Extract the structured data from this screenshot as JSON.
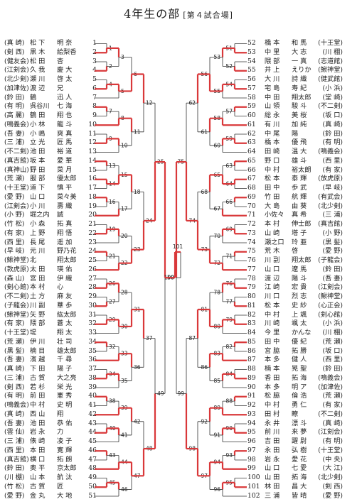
{
  "title": "4年生の部",
  "subtitle": "[第４試合場]",
  "left_entries": [
    {
      "num": "1",
      "club": "(真 崎)",
      "name": "松 下",
      "school": "明 奈"
    },
    {
      "num": "2",
      "club": "(剣 西)",
      "name": "黒 木",
      "school": "絵梨香"
    },
    {
      "num": "3",
      "club": "(健友会)",
      "name": "松 田",
      "school": "杏"
    },
    {
      "num": "4",
      "club": "(江剣会)",
      "name": "久 我",
      "school": "慶 大"
    },
    {
      "num": "5",
      "club": "(北少剣)",
      "name": "瀬 川",
      "school": "啓 太"
    },
    {
      "num": "6",
      "club": "(加津佐)",
      "name": "渡 辺",
      "school": "兄"
    },
    {
      "num": "7",
      "club": "(鈴 田)",
      "name": "鶴",
      "school": "迅 人"
    },
    {
      "num": "8",
      "club": "(有 明)",
      "name": "呉谷川",
      "school": "七 海"
    },
    {
      "num": "9",
      "club": "(高 麗)",
      "name": "鶴 田",
      "school": "翔 也",
      "strike": true
    },
    {
      "num": "10",
      "club": "(鳴義会)",
      "name": "小 林",
      "school": "龍 斗"
    },
    {
      "num": "11",
      "club": "(吾 妻)",
      "name": "小 嶋",
      "school": "爽 真"
    },
    {
      "num": "12",
      "club": "(三 浦)",
      "name": "立 光",
      "school": "匠 馬"
    },
    {
      "num": "13",
      "club": "(不二剣)",
      "name": "池 田",
      "school": "裕 道"
    },
    {
      "num": "14",
      "club": "(真吉館)",
      "name": "坂 本",
      "school": "愛 華"
    },
    {
      "num": "15",
      "club": "(真神山)",
      "name": "野 田",
      "school": "菜 月"
    },
    {
      "num": "16",
      "club": "(荒 瀬)",
      "name": "服 部",
      "school": "優太郎"
    },
    {
      "num": "17",
      "club": "(十王堂)",
      "name": "道 下",
      "school": "慎 平"
    },
    {
      "num": "18",
      "club": "(愛 野)",
      "name": "山 口",
      "school": "菜々美"
    },
    {
      "num": "19",
      "club": "(江剣会)",
      "name": "小 川",
      "school": "壽 織"
    },
    {
      "num": "20",
      "club": "(小 野)",
      "name": "堀之内",
      "school": "誠"
    },
    {
      "num": "21",
      "club": "(竹 松)",
      "name": "小 森",
      "school": "拓 真"
    },
    {
      "num": "22",
      "club": "(有 家)",
      "name": "上 野",
      "school": "翔 悟"
    },
    {
      "num": "23",
      "club": "(西 里)",
      "name": "長 尾",
      "school": "遥 加"
    },
    {
      "num": "24",
      "club": "(早 岐)",
      "name": "元 川",
      "school": "野乃花"
    },
    {
      "num": "25",
      "club": "(鰍神堂)",
      "name": "北",
      "school": "翔太郎"
    },
    {
      "num": "26",
      "club": "(敦虎原)",
      "name": "太 田",
      "school": "瑛 佑"
    },
    {
      "num": "27",
      "club": "(森 山)",
      "name": "宮 田",
      "school": "伊 織"
    },
    {
      "num": "28",
      "club": "(剣心館)",
      "name": "本 村",
      "school": "心"
    },
    {
      "num": "29",
      "club": "(不二剣)",
      "name": "土 方",
      "school": "麻 友"
    },
    {
      "num": "30",
      "club": "(子龍会)",
      "name": "川 副",
      "school": "華 歩"
    },
    {
      "num": "31",
      "club": "(鰍神堂)",
      "name": "矢 野",
      "school": "紘太郎"
    },
    {
      "num": "32",
      "club": "(有 家)",
      "name": "隈 部",
      "school": "蒼 太"
    },
    {
      "num": "33",
      "club": "(十王堂)",
      "name": "堤",
      "school": "翔 太"
    },
    {
      "num": "34",
      "club": "(荒 瀬)",
      "name": "伊 川",
      "school": "壮 司"
    },
    {
      "num": "35",
      "club": "(黒 髪)",
      "name": "楠 目",
      "school": "雄太郎"
    },
    {
      "num": "36",
      "club": "(吾 妻)",
      "name": "濱 越",
      "school": "千 尋"
    },
    {
      "num": "37",
      "club": "(真 崎)",
      "name": "下 田",
      "school": "陽 子"
    },
    {
      "num": "38",
      "club": "(三 浦)",
      "name": "古 賀",
      "school": "大之亮"
    },
    {
      "num": "39",
      "club": "(剣 西)",
      "name": "若 杉",
      "school": "栄 光"
    },
    {
      "num": "40",
      "club": "(有 明)",
      "name": "前 田",
      "school": "憲 秀"
    },
    {
      "num": "41",
      "club": "(鳴義会)",
      "name": "中 村",
      "school": "史 明"
    },
    {
      "num": "42",
      "club": "(真 崎)",
      "name": "西 山",
      "school": "翔"
    },
    {
      "num": "43",
      "club": "(吾 妻)",
      "name": "池 田",
      "school": "恭 佑"
    },
    {
      "num": "44",
      "club": "(雲 仙)",
      "name": "岩 永",
      "school": "力"
    },
    {
      "num": "45",
      "club": "(三 浦)",
      "name": "俵 崎",
      "school": "凌 子"
    },
    {
      "num": "46",
      "club": "(西 里)",
      "name": "本 田",
      "school": "寛 輝"
    },
    {
      "num": "47",
      "club": "(真吉館)",
      "name": "横 口",
      "school": "拓 朗"
    },
    {
      "num": "48",
      "club": "(鈴 田)",
      "name": "奥 平",
      "school": "京太郎"
    },
    {
      "num": "49",
      "club": "(川 棚)",
      "name": "山 本",
      "school": "航 汰"
    },
    {
      "num": "50",
      "club": "(竹 松)",
      "name": "古 賀",
      "school": "匠"
    },
    {
      "num": "51",
      "club": "(愛 野)",
      "name": "金 丸",
      "school": "大 地"
    }
  ],
  "right_entries": [
    {
      "num": "52",
      "name": "橋 本",
      "school": "和 馬",
      "club": "(十王堂)"
    },
    {
      "num": "53",
      "name": "中 里",
      "school": "大 志",
      "club": "(川 棚)"
    },
    {
      "num": "54",
      "name": "隈 部",
      "school": "一 真",
      "club": "(志道館)"
    },
    {
      "num": "55",
      "name": "井 上",
      "school": "えりか",
      "club": "(鰍神堂)"
    },
    {
      "num": "56",
      "name": "大 川",
      "school": "詩 織",
      "club": "(健武館)"
    },
    {
      "num": "57",
      "name": "宅 島",
      "school": "寿 紀",
      "club": "(小 浜)"
    },
    {
      "num": "58",
      "name": "中 田",
      "school": "翔太郎",
      "club": "(堂 崎)"
    },
    {
      "num": "59",
      "name": "山 領",
      "school": "駿 斗",
      "club": "(不二剣)"
    },
    {
      "num": "60",
      "name": "総 永",
      "school": "美 桜",
      "club": "(坂 口)"
    },
    {
      "num": "61",
      "name": "有 川",
      "school": "加 純",
      "club": "(真 崎)"
    },
    {
      "num": "62",
      "name": "中 尾",
      "school": "陽",
      "club": "(鈴 田)"
    },
    {
      "num": "63",
      "name": "橋 本",
      "school": "優 飛",
      "club": "(有 明)"
    },
    {
      "num": "64",
      "name": "田 崎",
      "school": "温 大",
      "club": "(鳴義会)"
    },
    {
      "num": "65",
      "name": "野 口",
      "school": "雄 斗",
      "club": "(西 里)"
    },
    {
      "num": "66",
      "name": "中 村",
      "school": "裕太朗",
      "club": "(有 家)"
    },
    {
      "num": "67",
      "name": "松 本",
      "school": "泰 輝",
      "club": "(放虎原)"
    },
    {
      "num": "68",
      "name": "田 中",
      "school": "歩 武",
      "club": "(早 岐)"
    },
    {
      "num": "69",
      "name": "竹 田",
      "school": "航 輝",
      "club": "(有武会)"
    },
    {
      "num": "70",
      "name": "大 島",
      "school": "由 葵",
      "club": "(北少剣)"
    },
    {
      "num": "71",
      "name": "小佐々",
      "school": "真 希",
      "club": "(三 浦)"
    },
    {
      "num": "72",
      "name": "本 村",
      "school": "伸士郎",
      "club": "(真吉館)"
    },
    {
      "num": "73",
      "name": "山 崎",
      "school": "塔 子",
      "club": "(小 野)"
    },
    {
      "num": "74",
      "name": "瀬之口",
      "school": "玲 亜",
      "club": "(黒 髪)"
    },
    {
      "num": "75",
      "name": "荒 木",
      "school": "啓",
      "club": "(愛 野)"
    },
    {
      "num": "76",
      "name": "川 副",
      "school": "翔太郎",
      "club": "(子龍会)"
    },
    {
      "num": "77",
      "name": "山 口",
      "school": "遼 馬",
      "club": "(鈴 田)"
    },
    {
      "num": "78",
      "name": "渡 辺",
      "school": "陽 斗",
      "club": "(吾 妻)"
    },
    {
      "num": "79",
      "name": "江 崎",
      "school": "宏 貴",
      "club": "(江剣会)"
    },
    {
      "num": "80",
      "name": "川 口",
      "school": "烈 志",
      "club": "(鰍神堂)"
    },
    {
      "num": "81",
      "name": "松 本",
      "school": "史 紗",
      "club": "(心正会)"
    },
    {
      "num": "82",
      "name": "中 村",
      "school": "上 颯",
      "club": "(剣心館)"
    },
    {
      "num": "83",
      "name": "川 崎",
      "school": "颯 太",
      "club": "(小 浜)"
    },
    {
      "num": "84",
      "name": "今 里",
      "school": "かんな",
      "club": "(川 棚)"
    },
    {
      "num": "85",
      "name": "田 中",
      "school": "優 紀",
      "club": "(荒 瀬)"
    },
    {
      "num": "86",
      "name": "宮 脇",
      "school": "拓 勝",
      "club": "(坂 口)"
    },
    {
      "num": "87",
      "name": "本 多",
      "school": "健 人",
      "club": "(西 里)"
    },
    {
      "num": "88",
      "name": "楠 本",
      "school": "晃 聖",
      "club": "(鈴 田)"
    },
    {
      "num": "89",
      "name": "香 田",
      "school": "拓 海",
      "club": "(鳴義会)"
    },
    {
      "num": "90",
      "name": "本 多",
      "school": "明 ア",
      "club": "(加津佐)"
    },
    {
      "num": "91",
      "name": "松 脇",
      "school": "倫 浩",
      "club": "(荒 瀬)"
    },
    {
      "num": "92",
      "name": "中 村",
      "school": "勇 仁",
      "club": "(有 家)"
    },
    {
      "num": "93",
      "name": "田 村",
      "school": "瞭",
      "club": "(不二剣)",
      "strike": true
    },
    {
      "num": "94",
      "name": "永 井",
      "school": "漂 斗",
      "club": "(真 崎)"
    },
    {
      "num": "95",
      "name": "前 川",
      "school": "来 夢",
      "club": "(江剣会)"
    },
    {
      "num": "96",
      "name": "吉 田",
      "school": "躍 尉",
      "club": "(有 明)"
    },
    {
      "num": "97",
      "name": "永 田",
      "school": "弘 樹",
      "club": "(十王堂)"
    },
    {
      "num": "98",
      "name": "岩 永",
      "school": "愛 花",
      "club": "(中 央)"
    },
    {
      "num": "99",
      "name": "山 口",
      "school": "七 愛",
      "club": "(大 江)"
    },
    {
      "num": "100",
      "name": "山 田",
      "school": "拓 海",
      "club": "(北少剣)"
    },
    {
      "num": "101",
      "name": "林 田",
      "school": "昌 大",
      "club": "(剣 西)"
    },
    {
      "num": "102",
      "name": "三 浦",
      "school": "皆 晴",
      "club": "(愛 野)"
    }
  ],
  "match_numbers": [
    "1",
    "2",
    "3",
    "4",
    "5",
    "6",
    "7",
    "8",
    "9",
    "10",
    "11",
    "12",
    "13",
    "14",
    "15",
    "16",
    "17",
    "18",
    "19",
    "20",
    "21",
    "22",
    "23",
    "24",
    "25",
    "26",
    "27",
    "28",
    "29",
    "30",
    "31",
    "32",
    "33",
    "34",
    "35",
    "36",
    "37",
    "38",
    "39",
    "40",
    "41",
    "42",
    "43",
    "44",
    "45",
    "46",
    "47",
    "48",
    "49",
    "50",
    "51",
    "52",
    "53",
    "54",
    "55",
    "56",
    "57",
    "58",
    "59",
    "60",
    "61",
    "62",
    "63",
    "64",
    "65",
    "66",
    "67",
    "68",
    "69",
    "70",
    "71",
    "72",
    "73",
    "74",
    "75",
    "76",
    "77",
    "78",
    "79",
    "80",
    "81",
    "82",
    "83",
    "84",
    "85",
    "86",
    "87",
    "88",
    "89",
    "90",
    "91",
    "92",
    "93",
    "94",
    "95",
    "96",
    "97",
    "98",
    "99",
    "100",
    "101"
  ],
  "colors": {
    "win": "#d9383a",
    "line": "#333333",
    "text": "#222222"
  }
}
